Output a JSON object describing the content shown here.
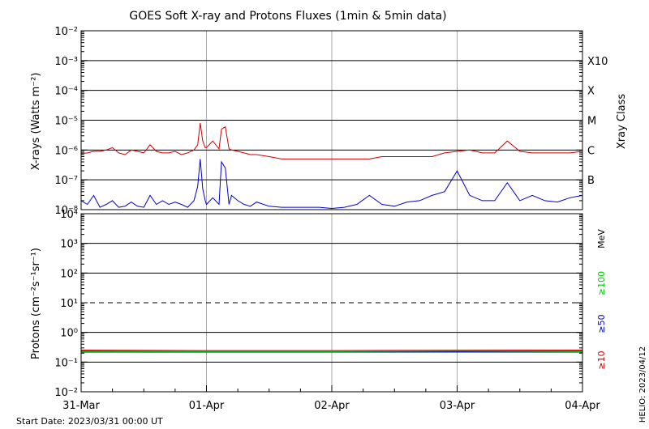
{
  "chart_data": [
    {
      "type": "line",
      "title": "GOES Soft X-ray and Protons Fluxes   (1min & 5min data)",
      "ylabel": "X-rays (Watts m⁻²)",
      "y2label": "Xray Class",
      "yscale": "log",
      "ylim": [
        1e-08,
        0.01
      ],
      "yticks": [
        "10⁻⁸",
        "10⁻⁷",
        "10⁻⁶",
        "10⁻⁵",
        "10⁻⁴",
        "10⁻³",
        "10⁻²"
      ],
      "classes": [
        "B",
        "C",
        "M",
        "X",
        "X10"
      ],
      "x_days": [
        "31-Mar",
        "01-Apr",
        "02-Apr",
        "03-Apr",
        "04-Apr"
      ],
      "series": [
        {
          "color": "#cc0000",
          "x": [
            0.0,
            0.05,
            0.1,
            0.15,
            0.2,
            0.25,
            0.3,
            0.35,
            0.4,
            0.45,
            0.5,
            0.55,
            0.6,
            0.65,
            0.7,
            0.75,
            0.8,
            0.85,
            0.9,
            0.93,
            0.95,
            0.97,
            0.99,
            1.0,
            1.05,
            1.1,
            1.12,
            1.15,
            1.18,
            1.2,
            1.25,
            1.3,
            1.35,
            1.4,
            1.5,
            1.6,
            1.7,
            1.8,
            1.9,
            2.0,
            2.1,
            2.2,
            2.3,
            2.4,
            2.5,
            2.6,
            2.7,
            2.8,
            2.9,
            3.0,
            3.1,
            3.2,
            3.3,
            3.4,
            3.5,
            3.6,
            3.7,
            3.8,
            3.9,
            4.0
          ],
          "y": [
            7.5e-07,
            8e-07,
            9e-07,
            9e-07,
            1e-06,
            1.2e-06,
            8e-07,
            7e-07,
            1e-06,
            9e-07,
            8e-07,
            1.5e-06,
            9e-07,
            8e-07,
            8e-07,
            9e-07,
            7e-07,
            8e-07,
            1e-06,
            1.5e-06,
            8e-06,
            2e-06,
            1.2e-06,
            1.2e-06,
            2e-06,
            1.1e-06,
            5e-06,
            6e-06,
            1.1e-06,
            1e-06,
            9e-07,
            8e-07,
            7e-07,
            7e-07,
            6e-07,
            5e-07,
            5e-07,
            5e-07,
            5e-07,
            5e-07,
            5e-07,
            5e-07,
            5e-07,
            6e-07,
            6e-07,
            6e-07,
            6e-07,
            6e-07,
            8e-07,
            9e-07,
            1e-06,
            8e-07,
            8e-07,
            2e-06,
            9e-07,
            8e-07,
            8e-07,
            8e-07,
            8e-07,
            9e-07
          ]
        },
        {
          "color": "#0000cc",
          "x": [
            0.0,
            0.05,
            0.1,
            0.15,
            0.2,
            0.25,
            0.3,
            0.35,
            0.4,
            0.45,
            0.5,
            0.55,
            0.6,
            0.65,
            0.7,
            0.75,
            0.8,
            0.85,
            0.9,
            0.93,
            0.95,
            0.97,
            0.99,
            1.0,
            1.05,
            1.1,
            1.12,
            1.15,
            1.18,
            1.2,
            1.25,
            1.3,
            1.35,
            1.4,
            1.5,
            1.6,
            1.7,
            1.8,
            1.9,
            2.0,
            2.1,
            2.2,
            2.3,
            2.4,
            2.5,
            2.6,
            2.7,
            2.8,
            2.9,
            3.0,
            3.1,
            3.2,
            3.3,
            3.4,
            3.5,
            3.6,
            3.7,
            3.8,
            3.9,
            4.0
          ],
          "y": [
            2e-08,
            1.5e-08,
            3e-08,
            1.2e-08,
            1.5e-08,
            2e-08,
            1.2e-08,
            1.3e-08,
            1.8e-08,
            1.3e-08,
            1.2e-08,
            3e-08,
            1.5e-08,
            2e-08,
            1.5e-08,
            1.8e-08,
            1.5e-08,
            1.2e-08,
            2e-08,
            6e-08,
            5e-07,
            5e-08,
            2e-08,
            1.5e-08,
            2.5e-08,
            1.5e-08,
            4e-07,
            2.5e-07,
            1.5e-08,
            3e-08,
            2e-08,
            1.5e-08,
            1.3e-08,
            1.8e-08,
            1.3e-08,
            1.2e-08,
            1.2e-08,
            1.2e-08,
            1.2e-08,
            1.1e-08,
            1.2e-08,
            1.5e-08,
            3e-08,
            1.5e-08,
            1.3e-08,
            1.8e-08,
            2e-08,
            3e-08,
            4e-08,
            2e-07,
            3e-08,
            2e-08,
            2e-08,
            8e-08,
            2e-08,
            3e-08,
            2e-08,
            1.8e-08,
            2.5e-08,
            3e-08
          ]
        }
      ]
    },
    {
      "type": "line",
      "ylabel": "Protons (cm⁻²s⁻¹sr⁻¹)",
      "yscale": "log",
      "ylim": [
        0.01,
        10000
      ],
      "yticks": [
        "10⁻²",
        "10⁻¹",
        "10⁰",
        "10¹",
        "10²",
        "10³",
        "10⁴"
      ],
      "threshold": 10,
      "right_labels": [
        {
          "text": "MeV",
          "color": "#000000"
        },
        {
          "text": "≥100",
          "color": "#00cc00"
        },
        {
          "text": "≥50",
          "color": "#0000cc"
        },
        {
          "text": "≥10",
          "color": "#cc0000"
        }
      ],
      "series": [
        {
          "name": "≥10",
          "color": "#cc0000",
          "x": [
            0,
            1,
            2,
            3,
            4
          ],
          "y": [
            0.25,
            0.24,
            0.24,
            0.25,
            0.25
          ]
        },
        {
          "name": "≥50",
          "color": "#0000cc",
          "x": [
            0,
            1,
            2,
            3,
            4
          ],
          "y": [
            0.22,
            0.22,
            0.22,
            0.22,
            0.22
          ]
        },
        {
          "name": "≥100",
          "color": "#00cc00",
          "x": [
            0,
            1,
            2,
            3,
            4
          ],
          "y": [
            0.23,
            0.23,
            0.23,
            0.24,
            0.23
          ]
        }
      ]
    }
  ],
  "footer": {
    "start_date": "Start Date: 2023/03/31 00:00 UT",
    "helio": "HELIO: 2023/04/12"
  }
}
